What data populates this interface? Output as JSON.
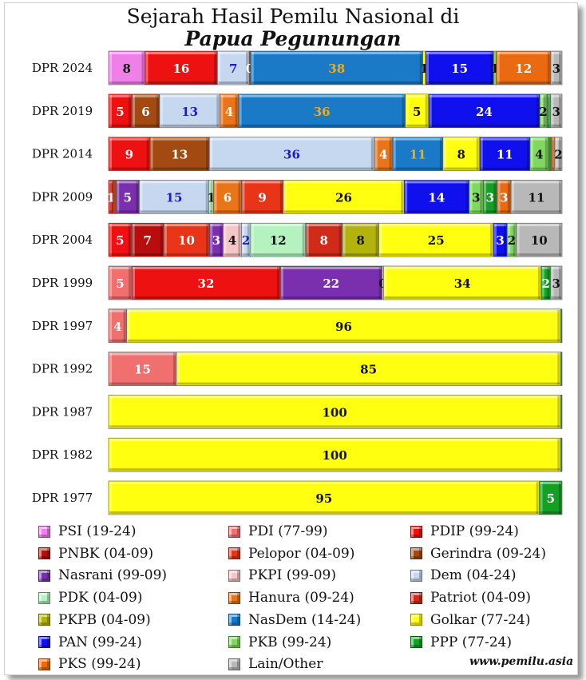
{
  "title_line1": "Sejarah Hasil Pemilu Nasional di",
  "title_line2": "Papua Pegunungan",
  "source": "www.pemilu.asia",
  "chart_data": {
    "type": "bar",
    "orientation": "horizontal",
    "stacked": true,
    "grid": false,
    "legend_position": "bottom",
    "title": "Sejarah Hasil Pemilu Nasional di Papua Pegunungan",
    "parties": [
      {
        "key": "PSI",
        "label": "PSI (19-24)",
        "color": "#ee80e8"
      },
      {
        "key": "PDI",
        "label": "PDI (77-99)",
        "color": "#f07070"
      },
      {
        "key": "PDIP",
        "label": "PDIP (99-24)",
        "color": "#ee1111"
      },
      {
        "key": "PNBK",
        "label": "PNBK (04-09)",
        "color": "#b80d0d"
      },
      {
        "key": "Pelopor",
        "label": "Pelopor (04-09)",
        "color": "#e83418"
      },
      {
        "key": "Gerindra",
        "label": "Gerindra (09-24)",
        "color": "#a24a12"
      },
      {
        "key": "Nasrani",
        "label": "Nasrani (99-09)",
        "color": "#7a2fae"
      },
      {
        "key": "PKPI",
        "label": "PKPI (99-09)",
        "color": "#f4c6c6"
      },
      {
        "key": "Dem",
        "label": "Dem (04-24)",
        "color": "#c6d8f0"
      },
      {
        "key": "PDK",
        "label": "PDK (04-09)",
        "color": "#b4f2c0"
      },
      {
        "key": "Hanura",
        "label": "Hanura (09-24)",
        "color": "#ea7418"
      },
      {
        "key": "Patriot",
        "label": "Patriot (04-09)",
        "color": "#cf2b18"
      },
      {
        "key": "PKPB",
        "label": "PKPB (04-09)",
        "color": "#b2b30d"
      },
      {
        "key": "NasDem",
        "label": "NasDem (14-24)",
        "color": "#1a7ac8"
      },
      {
        "key": "Golkar",
        "label": "Golkar (77-24)",
        "color": "#ffff10"
      },
      {
        "key": "PAN",
        "label": "PAN (99-24)",
        "color": "#1010ee"
      },
      {
        "key": "PKB",
        "label": "PKB (99-24)",
        "color": "#80d860"
      },
      {
        "key": "PPP",
        "label": "PPP (77-24)",
        "color": "#14a024"
      },
      {
        "key": "PKS",
        "label": "PKS (99-24)",
        "color": "#ea6a12"
      },
      {
        "key": "Lain",
        "label": "Lain/Other",
        "color": "#b8b8b8"
      }
    ],
    "categories": [
      "DPR 2024",
      "DPR 2019",
      "DPR 2014",
      "DPR 2009",
      "DPR 2004",
      "DPR 1999",
      "DPR 1997",
      "DPR 1992",
      "DPR 1987",
      "DPR 1982",
      "DPR 1977"
    ],
    "rows": [
      {
        "label": "DPR 2024",
        "segments": [
          {
            "party": "PSI",
            "value": 8,
            "text": "8"
          },
          {
            "party": "PDIP",
            "value": 16,
            "text": "16"
          },
          {
            "party": "Dem",
            "value": 7,
            "text": "7"
          },
          {
            "party": "Gerindra",
            "value": 0.3,
            "text": "0"
          },
          {
            "party": "NasDem",
            "value": 38,
            "text": "38"
          },
          {
            "party": "Golkar",
            "value": 0.6,
            "text": "1"
          },
          {
            "party": "PAN",
            "value": 15,
            "text": "15"
          },
          {
            "party": "PKB",
            "value": 0.6,
            "text": "1"
          },
          {
            "party": "PKS",
            "value": 12,
            "text": "12"
          },
          {
            "party": "Lain",
            "value": 2.5,
            "text": "3"
          }
        ]
      },
      {
        "label": "DPR 2019",
        "segments": [
          {
            "party": "PDIP",
            "value": 5,
            "text": "5"
          },
          {
            "party": "Gerindra",
            "value": 6,
            "text": "6"
          },
          {
            "party": "Dem",
            "value": 13,
            "text": "13"
          },
          {
            "party": "Hanura",
            "value": 4,
            "text": "4"
          },
          {
            "party": "NasDem",
            "value": 36,
            "text": "36"
          },
          {
            "party": "Golkar",
            "value": 5,
            "text": "5"
          },
          {
            "party": "PAN",
            "value": 24,
            "text": "24"
          },
          {
            "party": "PKB",
            "value": 1.5,
            "text": "2"
          },
          {
            "party": "PPP",
            "value": 0.8,
            "text": ""
          },
          {
            "party": "Lain",
            "value": 2.5,
            "text": "3"
          }
        ]
      },
      {
        "label": "DPR 2014",
        "segments": [
          {
            "party": "PDIP",
            "value": 9,
            "text": "9"
          },
          {
            "party": "Gerindra",
            "value": 13,
            "text": "13"
          },
          {
            "party": "Dem",
            "value": 36,
            "text": "36"
          },
          {
            "party": "Hanura",
            "value": 4,
            "text": "4"
          },
          {
            "party": "NasDem",
            "value": 11,
            "text": "11"
          },
          {
            "party": "Golkar",
            "value": 8,
            "text": "8"
          },
          {
            "party": "PAN",
            "value": 11,
            "text": "11"
          },
          {
            "party": "PKB",
            "value": 4,
            "text": "4"
          },
          {
            "party": "PPP",
            "value": 0.6,
            "text": ""
          },
          {
            "party": "PKS",
            "value": 0.8,
            "text": ""
          },
          {
            "party": "Lain",
            "value": 1.6,
            "text": "2"
          }
        ]
      },
      {
        "label": "DPR 2009",
        "segments": [
          {
            "party": "PDIP",
            "value": 1,
            "text": "1"
          },
          {
            "party": "Gerindra",
            "value": 0.6,
            "text": ""
          },
          {
            "party": "Nasrani",
            "value": 5,
            "text": "5"
          },
          {
            "party": "Dem",
            "value": 15,
            "text": "15"
          },
          {
            "party": "PDK",
            "value": 1,
            "text": "1"
          },
          {
            "party": "Hanura",
            "value": 6,
            "text": "6"
          },
          {
            "party": "Pelopor",
            "value": 9,
            "text": "9"
          },
          {
            "party": "Golkar",
            "value": 26,
            "text": "26"
          },
          {
            "party": "PAN",
            "value": 14,
            "text": "14"
          },
          {
            "party": "PKB",
            "value": 3,
            "text": "3"
          },
          {
            "party": "PPP",
            "value": 3,
            "text": "3"
          },
          {
            "party": "PKS",
            "value": 3,
            "text": "3"
          },
          {
            "party": "Lain",
            "value": 11,
            "text": "11"
          }
        ]
      },
      {
        "label": "DPR 2004",
        "segments": [
          {
            "party": "PDIP",
            "value": 5,
            "text": "5"
          },
          {
            "party": "PNBK",
            "value": 7,
            "text": "7"
          },
          {
            "party": "Pelopor",
            "value": 10,
            "text": "10"
          },
          {
            "party": "Nasrani",
            "value": 3,
            "text": "3"
          },
          {
            "party": "PKPI",
            "value": 4,
            "text": "4"
          },
          {
            "party": "Dem",
            "value": 2,
            "text": "2"
          },
          {
            "party": "PDK",
            "value": 12,
            "text": "12"
          },
          {
            "party": "Patriot",
            "value": 8,
            "text": "8"
          },
          {
            "party": "PKPB",
            "value": 8,
            "text": "8"
          },
          {
            "party": "Golkar",
            "value": 25,
            "text": "25"
          },
          {
            "party": "PAN",
            "value": 3,
            "text": "3"
          },
          {
            "party": "PKB",
            "value": 2,
            "text": "2"
          },
          {
            "party": "Lain",
            "value": 10,
            "text": "10"
          }
        ]
      },
      {
        "label": "DPR 1999",
        "segments": [
          {
            "party": "PDI",
            "value": 5,
            "text": "5"
          },
          {
            "party": "PDIP",
            "value": 32,
            "text": "32"
          },
          {
            "party": "Nasrani",
            "value": 22,
            "text": "22"
          },
          {
            "party": "PKPI",
            "value": 0.3,
            "text": "0"
          },
          {
            "party": "Golkar",
            "value": 34,
            "text": "34"
          },
          {
            "party": "PPP",
            "value": 2,
            "text": "2"
          },
          {
            "party": "Lain",
            "value": 2.5,
            "text": "3"
          }
        ]
      },
      {
        "label": "DPR 1997",
        "segments": [
          {
            "party": "PDI",
            "value": 4,
            "text": "4"
          },
          {
            "party": "Golkar",
            "value": 96,
            "text": "96"
          },
          {
            "party": "PPP",
            "value": 0.3,
            "text": ""
          }
        ]
      },
      {
        "label": "DPR 1992",
        "segments": [
          {
            "party": "PDI",
            "value": 15,
            "text": "15"
          },
          {
            "party": "Golkar",
            "value": 85,
            "text": "85"
          },
          {
            "party": "PPP",
            "value": 0.3,
            "text": ""
          }
        ]
      },
      {
        "label": "DPR 1987",
        "segments": [
          {
            "party": "Golkar",
            "value": 100,
            "text": "100"
          },
          {
            "party": "PPP",
            "value": 0.3,
            "text": ""
          }
        ]
      },
      {
        "label": "DPR 1982",
        "segments": [
          {
            "party": "Golkar",
            "value": 100,
            "text": "100"
          },
          {
            "party": "PPP",
            "value": 0.3,
            "text": ""
          }
        ]
      },
      {
        "label": "DPR 1977",
        "segments": [
          {
            "party": "Golkar",
            "value": 95,
            "text": "95"
          },
          {
            "party": "PPP",
            "value": 5,
            "text": "5"
          }
        ]
      }
    ]
  }
}
